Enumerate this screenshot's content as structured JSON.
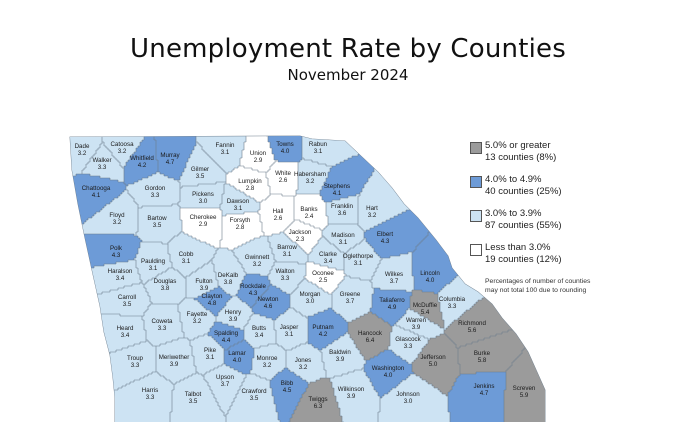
{
  "title": "Unemployment Rate by Counties",
  "subtitle": "November 2024",
  "colors": {
    "gray": "#9b9b9b",
    "blue": "#6d9bd7",
    "light": "#cde3f3",
    "white": "#ffffff",
    "border": "#6d7d8c"
  },
  "legend": [
    {
      "range": "5.0% or greater",
      "detail": "13 counties (8%)",
      "color": "#9b9b9b"
    },
    {
      "range": "4.0% to 4.9%",
      "detail": "40 counties (25%)",
      "color": "#6d9bd7"
    },
    {
      "range": "3.0% to 3.9%",
      "detail": "87 counties (55%)",
      "color": "#cde3f3"
    },
    {
      "range": "Less than 3.0%",
      "detail": "19 counties (12%)",
      "color": "#ffffff"
    }
  ],
  "note_line1": "Percentages of number of counties",
  "note_line2": "may not total 100 due to rounding",
  "counties": [
    {
      "name": "Dade",
      "rate": "3.2"
    },
    {
      "name": "Catoosa",
      "rate": "3.2"
    },
    {
      "name": "Walker",
      "rate": "3.3"
    },
    {
      "name": "Whitfield",
      "rate": "4.2"
    },
    {
      "name": "Murray",
      "rate": "4.7"
    },
    {
      "name": "Fannin",
      "rate": "3.1"
    },
    {
      "name": "Towns",
      "rate": "4.0"
    },
    {
      "name": "Rabun",
      "rate": "3.1"
    },
    {
      "name": "Union",
      "rate": "2.9"
    },
    {
      "name": "Gilmer",
      "rate": "3.5"
    },
    {
      "name": "Chattooga",
      "rate": "4.1"
    },
    {
      "name": "Gordon",
      "rate": "3.3"
    },
    {
      "name": "Pickens",
      "rate": "3.0"
    },
    {
      "name": "Lumpkin",
      "rate": "2.8"
    },
    {
      "name": "White",
      "rate": "2.6"
    },
    {
      "name": "Habersham",
      "rate": "3.2"
    },
    {
      "name": "Stephens",
      "rate": "4.1"
    },
    {
      "name": "Floyd",
      "rate": "3.2"
    },
    {
      "name": "Bartow",
      "rate": "3.5"
    },
    {
      "name": "Cherokee",
      "rate": "2.9"
    },
    {
      "name": "Dawson",
      "rate": "3.1"
    },
    {
      "name": "Forsyth",
      "rate": "2.8"
    },
    {
      "name": "Hall",
      "rate": "2.6"
    },
    {
      "name": "Banks",
      "rate": "2.4"
    },
    {
      "name": "Franklin",
      "rate": "3.6"
    },
    {
      "name": "Hart",
      "rate": "3.2"
    },
    {
      "name": "Polk",
      "rate": "4.3"
    },
    {
      "name": "Paulding",
      "rate": "3.1"
    },
    {
      "name": "Cobb",
      "rate": "3.1"
    },
    {
      "name": "Gwinnett",
      "rate": "3.2"
    },
    {
      "name": "Barrow",
      "rate": "3.1"
    },
    {
      "name": "Jackson",
      "rate": "2.3"
    },
    {
      "name": "Madison",
      "rate": "3.1"
    },
    {
      "name": "Elbert",
      "rate": "4.3"
    },
    {
      "name": "Haralson",
      "rate": "3.4"
    },
    {
      "name": "Douglas",
      "rate": "3.8"
    },
    {
      "name": "Fulton",
      "rate": "3.9"
    },
    {
      "name": "DeKalb",
      "rate": "3.8"
    },
    {
      "name": "Clarke",
      "rate": "3.4"
    },
    {
      "name": "Oglethorpe",
      "rate": "3.1"
    },
    {
      "name": "Walton",
      "rate": "3.3"
    },
    {
      "name": "Oconee",
      "rate": "2.5"
    },
    {
      "name": "Wilkes",
      "rate": "3.7"
    },
    {
      "name": "Lincoln",
      "rate": "4.0"
    },
    {
      "name": "Carroll",
      "rate": "3.5"
    },
    {
      "name": "Clayton",
      "rate": "4.8"
    },
    {
      "name": "Rockdale",
      "rate": "4.3"
    },
    {
      "name": "Newton",
      "rate": "4.6"
    },
    {
      "name": "Morgan",
      "rate": "3.0"
    },
    {
      "name": "Greene",
      "rate": "3.7"
    },
    {
      "name": "Taliaferro",
      "rate": "4.9"
    },
    {
      "name": "McDuffie",
      "rate": "5.4"
    },
    {
      "name": "Columbia",
      "rate": "3.3"
    },
    {
      "name": "Coweta",
      "rate": "3.3"
    },
    {
      "name": "Fayette",
      "rate": "3.2"
    },
    {
      "name": "Henry",
      "rate": "3.9"
    },
    {
      "name": "Warren",
      "rate": "3.9"
    },
    {
      "name": "Richmond",
      "rate": "5.6"
    },
    {
      "name": "Heard",
      "rate": "3.4"
    },
    {
      "name": "Spalding",
      "rate": "4.4"
    },
    {
      "name": "Butts",
      "rate": "3.4"
    },
    {
      "name": "Jasper",
      "rate": "3.1"
    },
    {
      "name": "Putnam",
      "rate": "4.2"
    },
    {
      "name": "Hancock",
      "rate": "6.4"
    },
    {
      "name": "Glascock",
      "rate": "3.3"
    },
    {
      "name": "Pike",
      "rate": "3.1"
    },
    {
      "name": "Lamar",
      "rate": "4.0"
    },
    {
      "name": "Monroe",
      "rate": "3.2"
    },
    {
      "name": "Jones",
      "rate": "3.2"
    },
    {
      "name": "Baldwin",
      "rate": "3.9"
    },
    {
      "name": "Jefferson",
      "rate": "5.0"
    },
    {
      "name": "Burke",
      "rate": "5.8"
    },
    {
      "name": "Troup",
      "rate": "3.3"
    },
    {
      "name": "Meriwether",
      "rate": "3.9"
    },
    {
      "name": "Upson",
      "rate": "3.7"
    },
    {
      "name": "Washington",
      "rate": "4.0"
    },
    {
      "name": "Bibb",
      "rate": "4.5"
    },
    {
      "name": "Harris",
      "rate": "3.3"
    },
    {
      "name": "Talbot",
      "rate": "3.5"
    },
    {
      "name": "Crawford",
      "rate": "3.5"
    },
    {
      "name": "Twiggs",
      "rate": "6.3"
    },
    {
      "name": "Wilkinson",
      "rate": "3.9"
    },
    {
      "name": "Johnson",
      "rate": "3.0"
    },
    {
      "name": "Jenkins",
      "rate": "4.7"
    },
    {
      "name": "Screven",
      "rate": "5.9"
    }
  ]
}
